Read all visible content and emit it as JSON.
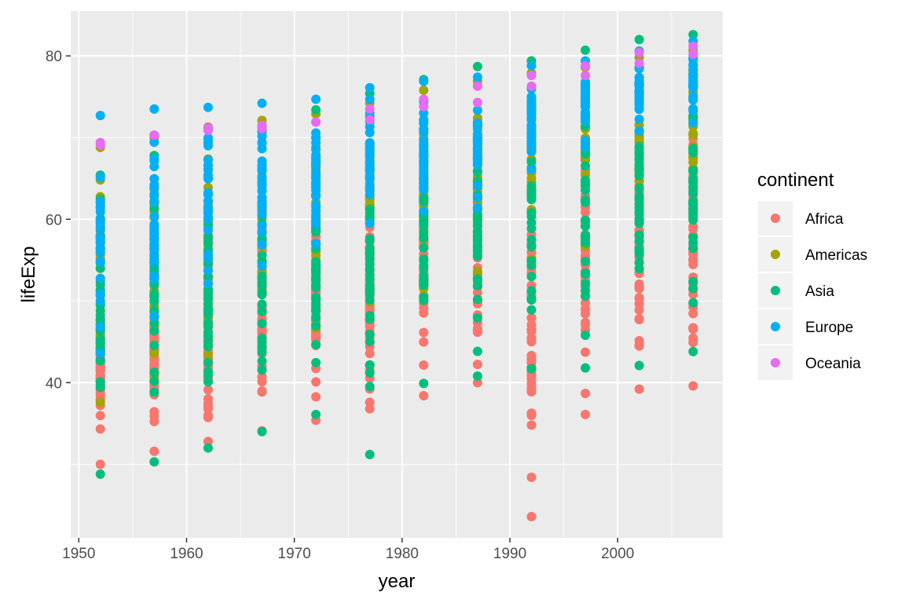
{
  "chart_data": {
    "type": "scatter",
    "title": "",
    "xlabel": "year",
    "ylabel": "lifeExp",
    "xlim": [
      1949.25,
      2009.75
    ],
    "ylim": [
      21,
      85.5
    ],
    "x_ticks": [
      1950,
      1960,
      1970,
      1980,
      1990,
      2000
    ],
    "y_ticks": [
      40,
      60,
      80
    ],
    "grid": true,
    "legend": {
      "title": "continent",
      "position": "right"
    },
    "colors": {
      "Africa": "#F8766D",
      "Americas": "#A3A500",
      "Asia": "#00BF7D",
      "Europe": "#00B0F6",
      "Oceania": "#E76BF3"
    },
    "years": [
      1952,
      1957,
      1962,
      1967,
      1972,
      1977,
      1982,
      1987,
      1992,
      1997,
      2002,
      2007
    ],
    "series": [
      {
        "name": "Africa",
        "ranges": [
          [
            30.0,
            52.7
          ],
          [
            31.6,
            55.1
          ],
          [
            32.8,
            58.1
          ],
          [
            34.1,
            61.5
          ],
          [
            35.4,
            64.3
          ],
          [
            36.8,
            67.1
          ],
          [
            38.4,
            69.9
          ],
          [
            40.0,
            71.9
          ],
          [
            23.6,
            73.6
          ],
          [
            36.1,
            74.8
          ],
          [
            39.2,
            75.7
          ],
          [
            39.6,
            76.4
          ]
        ]
      },
      {
        "name": "Americas",
        "ranges": [
          [
            37.6,
            68.8
          ],
          [
            40.7,
            70.0
          ],
          [
            43.4,
            71.3
          ],
          [
            45.0,
            72.1
          ],
          [
            46.7,
            72.9
          ],
          [
            49.9,
            74.2
          ],
          [
            51.5,
            75.8
          ],
          [
            53.6,
            76.9
          ],
          [
            55.1,
            77.9
          ],
          [
            56.7,
            78.6
          ],
          [
            58.1,
            79.8
          ],
          [
            60.9,
            80.7
          ]
        ]
      },
      {
        "name": "Asia",
        "ranges": [
          [
            28.8,
            65.4
          ],
          [
            30.3,
            67.8
          ],
          [
            32.0,
            69.4
          ],
          [
            34.0,
            71.4
          ],
          [
            36.1,
            73.4
          ],
          [
            31.2,
            75.4
          ],
          [
            39.9,
            77.1
          ],
          [
            40.8,
            78.7
          ],
          [
            41.7,
            79.4
          ],
          [
            41.8,
            80.7
          ],
          [
            42.1,
            82.0
          ],
          [
            43.8,
            82.6
          ]
        ]
      },
      {
        "name": "Europe",
        "ranges": [
          [
            43.6,
            72.7
          ],
          [
            48.1,
            73.5
          ],
          [
            52.1,
            73.7
          ],
          [
            54.3,
            74.2
          ],
          [
            57.0,
            74.7
          ],
          [
            59.5,
            76.1
          ],
          [
            61.0,
            76.9
          ],
          [
            61.4,
            77.4
          ],
          [
            66.1,
            78.8
          ],
          [
            68.8,
            79.4
          ],
          [
            70.8,
            80.6
          ],
          [
            71.8,
            81.8
          ]
        ]
      },
      {
        "name": "Oceania",
        "ranges": [
          [
            69.1,
            69.4
          ],
          [
            70.3,
            70.3
          ],
          [
            70.9,
            71.2
          ],
          [
            71.1,
            71.5
          ],
          [
            71.9,
            71.9
          ],
          [
            72.2,
            73.5
          ],
          [
            73.8,
            74.7
          ],
          [
            74.3,
            76.3
          ],
          [
            76.3,
            77.6
          ],
          [
            77.6,
            78.8
          ],
          [
            79.1,
            80.4
          ],
          [
            80.2,
            81.2
          ]
        ]
      }
    ]
  }
}
